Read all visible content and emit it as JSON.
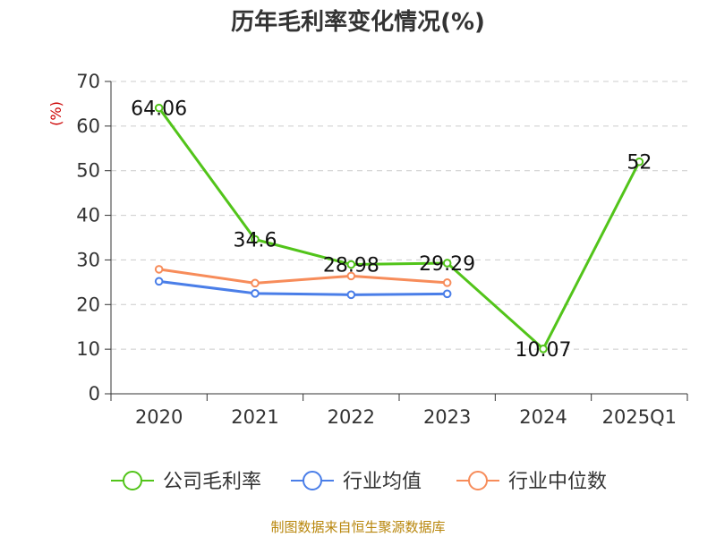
{
  "chart_data": {
    "type": "line",
    "title": "历年毛利率变化情况(%)",
    "ylabel": "(%)",
    "categories": [
      "2020",
      "2021",
      "2022",
      "2023",
      "2024",
      "2025Q1"
    ],
    "ylim": [
      0,
      70
    ],
    "yticks": [
      0,
      10,
      20,
      30,
      40,
      50,
      60,
      70
    ],
    "grid": true,
    "legend_position": "bottom",
    "series": [
      {
        "name": "公司毛利率",
        "color": "#52c41a",
        "values": [
          64.06,
          34.6,
          28.98,
          29.29,
          10.07,
          52
        ],
        "show_labels": true
      },
      {
        "name": "行业均值",
        "color": "#4a7ee8",
        "values": [
          25.2,
          22.5,
          22.2,
          22.4,
          null,
          null
        ],
        "show_labels": false
      },
      {
        "name": "行业中位数",
        "color": "#f78c5a",
        "values": [
          27.9,
          24.8,
          26.4,
          24.9,
          null,
          null
        ],
        "show_labels": false
      }
    ],
    "data_labels": [
      "64.06",
      "34.6",
      "28.98",
      "29.29",
      "10.07",
      "52"
    ]
  },
  "ylabel_color": "#cc0000",
  "source_text": "制图数据来自恒生聚源数据库"
}
